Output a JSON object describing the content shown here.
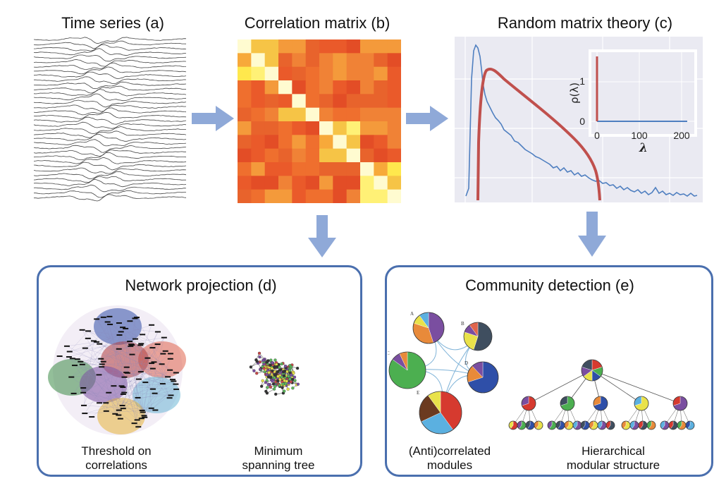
{
  "panels": {
    "a": {
      "title": "Time series (a)"
    },
    "b": {
      "title": "Correlation matrix (b)"
    },
    "c": {
      "title": "Random matrix theory (c)",
      "inset": {
        "ylabel": "ρ(λ)",
        "xlabel": "λ",
        "xticks": [
          "0",
          "100",
          "200"
        ],
        "yticks": [
          "1",
          "0"
        ]
      }
    },
    "d": {
      "title": "Network projection (d)",
      "captions": {
        "left": [
          "Threshold on",
          "correlations"
        ],
        "right": [
          "Minimum",
          "spanning tree"
        ]
      }
    },
    "e": {
      "title": "Community detection (e)",
      "captions": {
        "left": [
          "(Anti)correlated",
          "modules"
        ],
        "right": [
          "Hierarchical",
          "modular structure"
        ]
      },
      "node_letters": [
        "A",
        "B",
        "C",
        "D",
        "E"
      ]
    }
  },
  "colors": {
    "arrow": "#8fa9d8",
    "box_border": "#4a6fae",
    "mp_curve": "#c0504d",
    "empirical": "#4f7fc0"
  }
}
